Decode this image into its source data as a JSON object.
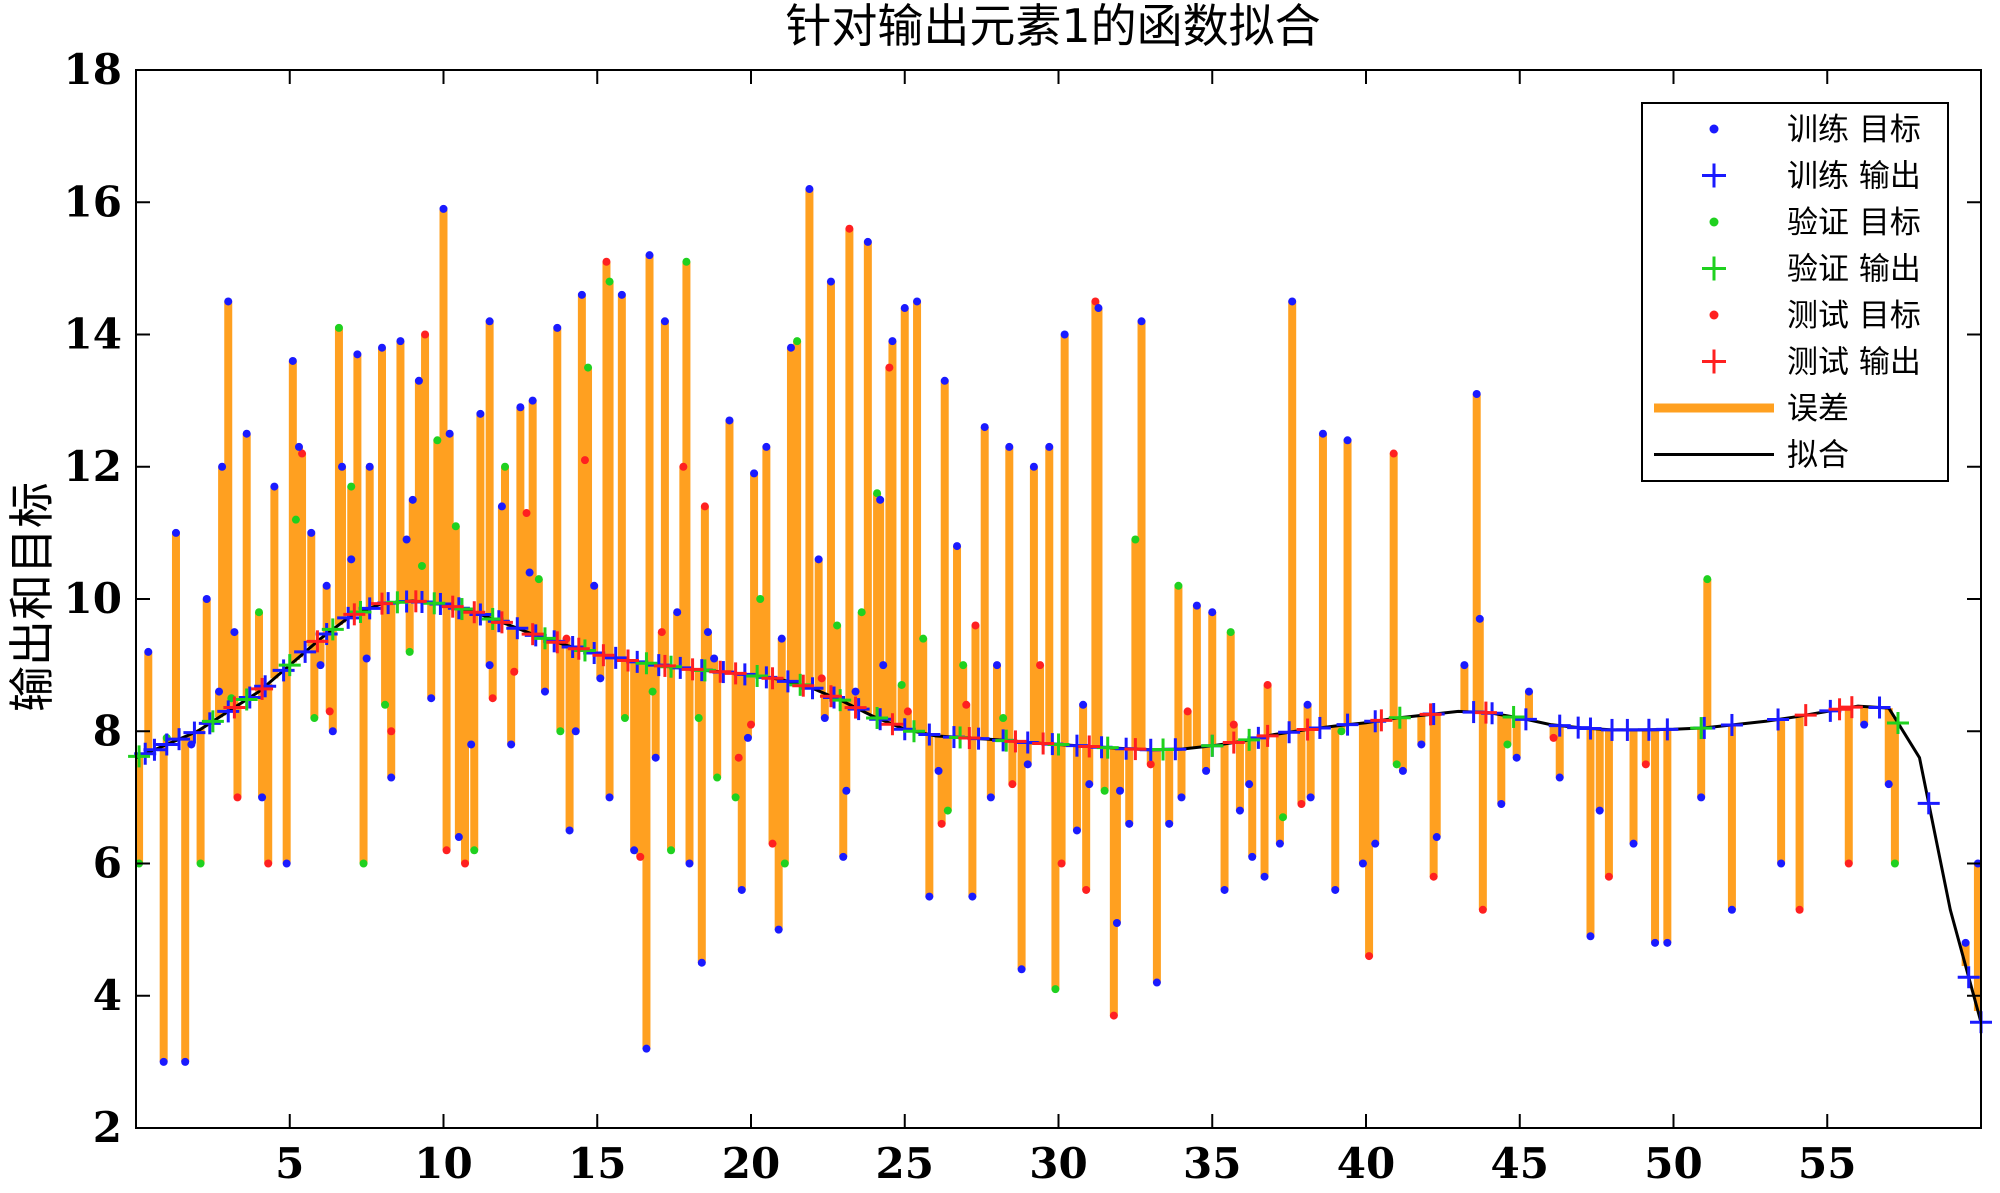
{
  "chart_data": {
    "type": "scatter",
    "title": "针对输出元素1的函数拟合",
    "ylabel": "输出和目标",
    "xlabel": "",
    "xlim": [
      0,
      60
    ],
    "ylim": [
      2,
      18
    ],
    "xticks": [
      5,
      10,
      15,
      20,
      25,
      30,
      35,
      40,
      45,
      50,
      55
    ],
    "yticks": [
      2,
      4,
      6,
      8,
      10,
      12,
      14,
      16,
      18
    ],
    "grid": false,
    "legend_position": "top-right",
    "colors": {
      "train": "#1a1aff",
      "validation": "#1fd11f",
      "test": "#ff2020",
      "error": "#ffa020",
      "fit": "#000000"
    },
    "legend": [
      {
        "key": "train_target",
        "label": "训练 目标",
        "marker": "dot",
        "color": "#1a1aff"
      },
      {
        "key": "train_output",
        "label": "训练 输出",
        "marker": "plus",
        "color": "#1a1aff"
      },
      {
        "key": "val_target",
        "label": "验证 目标",
        "marker": "dot",
        "color": "#1fd11f"
      },
      {
        "key": "val_output",
        "label": "验证 输出",
        "marker": "plus",
        "color": "#1fd11f"
      },
      {
        "key": "test_target",
        "label": "测试 目标",
        "marker": "dot",
        "color": "#ff2020"
      },
      {
        "key": "test_output",
        "label": "测试 输出",
        "marker": "plus",
        "color": "#ff2020"
      },
      {
        "key": "error",
        "label": "误差",
        "marker": "bar",
        "color": "#ffa020"
      },
      {
        "key": "fit",
        "label": "拟合",
        "marker": "line",
        "color": "#000000"
      }
    ],
    "fit_curve": {
      "x": [
        0,
        1,
        2,
        3,
        4,
        5,
        6,
        7,
        8,
        9,
        10,
        11,
        12,
        13,
        14,
        15,
        16,
        17,
        18,
        19,
        20,
        21,
        22,
        23,
        24,
        25,
        26,
        27,
        28,
        29,
        30,
        31,
        32,
        33,
        34,
        35,
        36,
        37,
        38,
        39,
        40,
        41,
        42,
        43,
        44,
        45,
        46,
        47,
        48,
        49,
        50,
        51,
        52,
        53,
        54,
        55,
        56,
        57,
        58,
        59,
        60
      ],
      "y": [
        7.6,
        7.8,
        8.0,
        8.3,
        8.6,
        9.0,
        9.4,
        9.75,
        9.93,
        9.97,
        9.92,
        9.8,
        9.63,
        9.45,
        9.3,
        9.17,
        9.07,
        9.0,
        8.94,
        8.9,
        8.85,
        8.78,
        8.65,
        8.45,
        8.22,
        8.03,
        7.93,
        7.9,
        7.87,
        7.83,
        7.8,
        7.77,
        7.74,
        7.72,
        7.73,
        7.78,
        7.85,
        7.95,
        8.02,
        8.08,
        8.13,
        8.2,
        8.25,
        8.3,
        8.28,
        8.2,
        8.1,
        8.05,
        8.02,
        8.02,
        8.03,
        8.05,
        8.1,
        8.15,
        8.22,
        8.3,
        8.38,
        8.35,
        7.6,
        5.3,
        3.6
      ]
    },
    "training_targets": [
      [
        0.4,
        9.2
      ],
      [
        0.9,
        3.0
      ],
      [
        1.3,
        11.0
      ],
      [
        1.6,
        3.0
      ],
      [
        2.3,
        10.0
      ],
      [
        2.8,
        12.0
      ],
      [
        3.0,
        14.5
      ],
      [
        3.2,
        9.5
      ],
      [
        3.6,
        12.5
      ],
      [
        4.1,
        7.0
      ],
      [
        4.5,
        11.7
      ],
      [
        4.9,
        6.0
      ],
      [
        5.1,
        13.6
      ],
      [
        5.3,
        12.3
      ],
      [
        5.7,
        11.0
      ],
      [
        6.0,
        9.0
      ],
      [
        6.4,
        8.0
      ],
      [
        6.7,
        12.0
      ],
      [
        7.0,
        10.6
      ],
      [
        7.2,
        13.7
      ],
      [
        7.6,
        12.0
      ],
      [
        8.0,
        13.8
      ],
      [
        8.3,
        7.3
      ],
      [
        8.6,
        13.9
      ],
      [
        9.0,
        11.5
      ],
      [
        9.2,
        13.3
      ],
      [
        9.6,
        8.5
      ],
      [
        10.0,
        15.9
      ],
      [
        10.2,
        12.5
      ],
      [
        10.5,
        6.4
      ],
      [
        10.9,
        7.8
      ],
      [
        11.2,
        12.8
      ],
      [
        11.5,
        14.2
      ],
      [
        11.9,
        11.4
      ],
      [
        12.2,
        7.8
      ],
      [
        12.5,
        12.9
      ],
      [
        12.9,
        13.0
      ],
      [
        13.3,
        8.6
      ],
      [
        13.7,
        14.1
      ],
      [
        14.1,
        6.5
      ],
      [
        14.5,
        14.6
      ],
      [
        14.9,
        10.2
      ],
      [
        15.4,
        7.0
      ],
      [
        15.8,
        14.6
      ],
      [
        16.2,
        6.2
      ],
      [
        16.6,
        3.2
      ],
      [
        16.7,
        15.2
      ],
      [
        17.2,
        14.2
      ],
      [
        17.6,
        9.8
      ],
      [
        18.0,
        6.0
      ],
      [
        18.4,
        4.5
      ],
      [
        18.8,
        9.1
      ],
      [
        19.3,
        12.7
      ],
      [
        19.7,
        5.6
      ],
      [
        20.1,
        11.9
      ],
      [
        20.5,
        12.3
      ],
      [
        20.9,
        5.0
      ],
      [
        21.3,
        13.8
      ],
      [
        21.9,
        16.2
      ],
      [
        22.2,
        10.6
      ],
      [
        22.6,
        14.8
      ],
      [
        23.0,
        6.1
      ],
      [
        23.4,
        8.6
      ],
      [
        23.8,
        15.4
      ],
      [
        24.2,
        11.5
      ],
      [
        24.6,
        13.9
      ],
      [
        25.0,
        14.4
      ],
      [
        25.4,
        14.5
      ],
      [
        25.8,
        5.5
      ],
      [
        26.3,
        13.3
      ],
      [
        26.7,
        10.8
      ],
      [
        27.2,
        5.5
      ],
      [
        27.6,
        12.6
      ],
      [
        28.0,
        9.0
      ],
      [
        28.4,
        12.3
      ],
      [
        28.8,
        4.4
      ],
      [
        29.2,
        12.0
      ],
      [
        29.7,
        12.3
      ],
      [
        30.2,
        14.0
      ],
      [
        30.6,
        6.5
      ],
      [
        31.0,
        7.2
      ],
      [
        31.3,
        14.4
      ],
      [
        31.9,
        5.1
      ],
      [
        32.3,
        6.6
      ],
      [
        32.7,
        14.2
      ],
      [
        33.2,
        4.2
      ],
      [
        33.6,
        6.6
      ],
      [
        34.0,
        7.0
      ],
      [
        34.5,
        9.9
      ],
      [
        35.0,
        9.8
      ],
      [
        35.4,
        5.6
      ],
      [
        35.9,
        6.8
      ],
      [
        36.3,
        6.1
      ],
      [
        36.7,
        5.8
      ],
      [
        37.2,
        6.3
      ],
      [
        37.6,
        14.5
      ],
      [
        38.2,
        7.0
      ],
      [
        38.6,
        12.5
      ],
      [
        39.0,
        5.6
      ],
      [
        39.4,
        12.4
      ],
      [
        39.9,
        6.0
      ],
      [
        40.3,
        6.3
      ],
      [
        41.2,
        7.4
      ],
      [
        42.3,
        6.4
      ],
      [
        43.2,
        9.0
      ],
      [
        43.6,
        13.1
      ],
      [
        43.7,
        9.7
      ],
      [
        44.4,
        6.9
      ],
      [
        45.3,
        8.6
      ],
      [
        46.3,
        7.3
      ],
      [
        47.3,
        4.9
      ],
      [
        47.6,
        6.8
      ],
      [
        48.7,
        6.3
      ],
      [
        49.4,
        4.8
      ],
      [
        49.8,
        4.8
      ],
      [
        50.9,
        7.0
      ],
      [
        51.9,
        5.3
      ],
      [
        53.5,
        6.0
      ],
      [
        56.2,
        8.1
      ],
      [
        57.0,
        7.2
      ],
      [
        59.5,
        4.8
      ],
      [
        59.9,
        6.0
      ],
      [
        1.8,
        7.8
      ],
      [
        2.7,
        8.6
      ],
      [
        6.2,
        10.2
      ],
      [
        7.5,
        9.1
      ],
      [
        8.8,
        10.9
      ],
      [
        11.5,
        9.0
      ],
      [
        12.8,
        10.4
      ],
      [
        14.3,
        8.0
      ],
      [
        15.1,
        8.8
      ],
      [
        16.9,
        7.6
      ],
      [
        18.6,
        9.5
      ],
      [
        19.9,
        7.9
      ],
      [
        21.0,
        9.4
      ],
      [
        22.4,
        8.2
      ],
      [
        23.1,
        7.1
      ],
      [
        24.3,
        9.0
      ],
      [
        26.1,
        7.4
      ],
      [
        27.8,
        7.0
      ],
      [
        29.0,
        7.5
      ],
      [
        30.8,
        8.4
      ],
      [
        32.0,
        7.1
      ],
      [
        34.8,
        7.4
      ],
      [
        36.2,
        7.2
      ],
      [
        38.1,
        8.4
      ],
      [
        41.8,
        7.8
      ],
      [
        44.9,
        7.6
      ]
    ],
    "validation_targets": [
      [
        0.1,
        6.0
      ],
      [
        2.1,
        6.0
      ],
      [
        3.1,
        8.5
      ],
      [
        4.0,
        9.8
      ],
      [
        5.2,
        11.2
      ],
      [
        5.8,
        8.2
      ],
      [
        6.6,
        14.1
      ],
      [
        7.0,
        11.7
      ],
      [
        7.4,
        6.0
      ],
      [
        8.1,
        8.4
      ],
      [
        8.9,
        9.2
      ],
      [
        9.3,
        10.5
      ],
      [
        9.8,
        12.4
      ],
      [
        10.4,
        11.1
      ],
      [
        11.0,
        6.2
      ],
      [
        12.0,
        12.0
      ],
      [
        13.1,
        10.3
      ],
      [
        13.8,
        8.0
      ],
      [
        14.7,
        13.5
      ],
      [
        15.4,
        14.8
      ],
      [
        16.8,
        8.6
      ],
      [
        17.4,
        6.2
      ],
      [
        17.9,
        15.1
      ],
      [
        18.3,
        8.2
      ],
      [
        19.5,
        7.0
      ],
      [
        20.3,
        10.0
      ],
      [
        21.1,
        6.0
      ],
      [
        21.5,
        13.9
      ],
      [
        22.8,
        9.6
      ],
      [
        24.1,
        11.6
      ],
      [
        24.9,
        8.7
      ],
      [
        25.6,
        9.4
      ],
      [
        26.9,
        9.0
      ],
      [
        28.2,
        8.2
      ],
      [
        29.9,
        4.1
      ],
      [
        31.5,
        7.1
      ],
      [
        32.5,
        10.9
      ],
      [
        33.9,
        10.2
      ],
      [
        35.6,
        9.5
      ],
      [
        37.3,
        6.7
      ],
      [
        39.2,
        8.0
      ],
      [
        41.0,
        7.5
      ],
      [
        44.6,
        7.8
      ],
      [
        51.1,
        10.3
      ],
      [
        57.2,
        6.0
      ],
      [
        1.0,
        7.9
      ],
      [
        15.9,
        8.2
      ],
      [
        18.9,
        7.3
      ],
      [
        23.6,
        9.8
      ],
      [
        26.4,
        6.8
      ]
    ],
    "test_targets": [
      [
        3.3,
        7.0
      ],
      [
        4.3,
        6.0
      ],
      [
        5.4,
        12.2
      ],
      [
        6.3,
        8.3
      ],
      [
        8.3,
        8.0
      ],
      [
        9.4,
        14.0
      ],
      [
        10.1,
        6.2
      ],
      [
        10.7,
        6.0
      ],
      [
        11.6,
        8.5
      ],
      [
        12.7,
        11.3
      ],
      [
        14.0,
        9.4
      ],
      [
        14.6,
        12.1
      ],
      [
        15.3,
        15.1
      ],
      [
        16.4,
        6.1
      ],
      [
        17.1,
        9.5
      ],
      [
        17.8,
        12.0
      ],
      [
        18.5,
        11.4
      ],
      [
        19.6,
        7.6
      ],
      [
        20.7,
        6.3
      ],
      [
        22.3,
        8.8
      ],
      [
        23.2,
        15.6
      ],
      [
        24.5,
        13.5
      ],
      [
        25.1,
        8.3
      ],
      [
        26.2,
        6.6
      ],
      [
        27.3,
        9.6
      ],
      [
        28.5,
        7.2
      ],
      [
        29.4,
        9.0
      ],
      [
        30.1,
        6.0
      ],
      [
        30.9,
        5.6
      ],
      [
        31.2,
        14.5
      ],
      [
        31.8,
        3.7
      ],
      [
        33.0,
        7.5
      ],
      [
        34.2,
        8.3
      ],
      [
        35.7,
        8.1
      ],
      [
        36.8,
        8.7
      ],
      [
        37.9,
        6.9
      ],
      [
        40.1,
        4.6
      ],
      [
        40.9,
        12.2
      ],
      [
        42.2,
        5.8
      ],
      [
        43.8,
        5.3
      ],
      [
        46.1,
        7.9
      ],
      [
        47.9,
        5.8
      ],
      [
        49.1,
        7.5
      ],
      [
        54.1,
        5.3
      ],
      [
        55.7,
        6.0
      ],
      [
        12.3,
        8.9
      ],
      [
        20.0,
        8.1
      ],
      [
        27.0,
        8.4
      ]
    ],
    "training_outputs_x": [
      0.3,
      0.6,
      1.0,
      1.4,
      1.9,
      2.4,
      3.0,
      3.7,
      4.2,
      4.8,
      5.5,
      6.2,
      6.9,
      7.6,
      8.2,
      8.8,
      9.3,
      9.9,
      10.5,
      11.2,
      11.8,
      12.4,
      13.0,
      13.6,
      14.2,
      14.9,
      15.6,
      16.3,
      17.0,
      17.7,
      18.4,
      19.1,
      19.8,
      20.5,
      21.2,
      22.0,
      22.7,
      23.5,
      24.2,
      25.0,
      25.8,
      26.6,
      27.4,
      28.2,
      29.0,
      29.8,
      30.6,
      31.4,
      32.2,
      33.0,
      33.8,
      35.0,
      36.5,
      37.5,
      38.5,
      39.4,
      40.3,
      42.2,
      43.5,
      44.1,
      45.2,
      46.3,
      46.9,
      47.3,
      48.0,
      48.5,
      49.2,
      49.8,
      51.0,
      51.9,
      53.4,
      55.1,
      56.7,
      58.3,
      59.6,
      60.0
    ],
    "validation_outputs_x": [
      0.1,
      2.5,
      3.6,
      5.0,
      6.4,
      7.3,
      8.5,
      9.7,
      10.6,
      11.6,
      13.3,
      14.6,
      16.6,
      17.4,
      18.5,
      20.2,
      21.6,
      22.9,
      24.1,
      25.3,
      26.8,
      28.3,
      30.0,
      31.6,
      33.4,
      35.0,
      36.2,
      41.1,
      44.8,
      50.9,
      57.3
    ],
    "test_outputs_x": [
      3.2,
      4.1,
      5.9,
      7.1,
      8.0,
      9.1,
      10.3,
      11.0,
      11.9,
      12.9,
      13.7,
      14.4,
      15.2,
      16.0,
      17.2,
      18.1,
      19.0,
      19.5,
      20.7,
      21.7,
      22.6,
      23.4,
      24.6,
      27.1,
      28.6,
      29.5,
      31.0,
      32.5,
      35.7,
      36.8,
      38.1,
      40.5,
      42.1,
      43.9,
      54.3,
      55.8,
      55.4
    ]
  }
}
